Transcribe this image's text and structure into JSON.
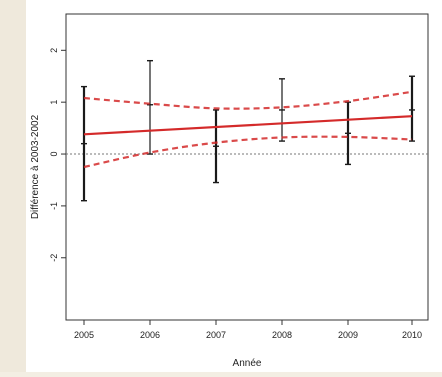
{
  "chart_data": {
    "type": "line",
    "xlabel": "Année",
    "ylabel": "Différence à 2003-2002",
    "x": [
      "2005",
      "2006",
      "2007",
      "2008",
      "2009",
      "2010"
    ],
    "xtick_labels": [
      "2005",
      "2006",
      "2007",
      "2008",
      "2009",
      "2010"
    ],
    "ylim": [
      -3.2,
      2.7
    ],
    "yticks": [
      -2,
      -1,
      0,
      1,
      2
    ],
    "ytick_labels": [
      "-2",
      "-1",
      "0",
      "1",
      "2"
    ],
    "reference_line": 0,
    "grid": false,
    "observations": {
      "mean": [
        0.2,
        0.95,
        0.15,
        0.85,
        0.4,
        0.85
      ],
      "lower": [
        -0.9,
        0.0,
        -0.55,
        0.25,
        -0.2,
        0.25
      ],
      "upper": [
        1.3,
        1.8,
        0.85,
        1.45,
        1.0,
        1.5
      ]
    },
    "trend": {
      "start": 0.38,
      "end": 0.73
    },
    "confidence_band": {
      "upper": [
        1.08,
        0.97,
        0.88,
        0.9,
        1.02,
        1.2
      ],
      "lower": [
        -0.25,
        0.03,
        0.22,
        0.32,
        0.33,
        0.28
      ]
    },
    "colors": {
      "trend": "#d42a2a",
      "band": "#d42a2a",
      "error_bars": "#1a1a1a",
      "reference": "#777777",
      "axes": "#333333"
    }
  }
}
